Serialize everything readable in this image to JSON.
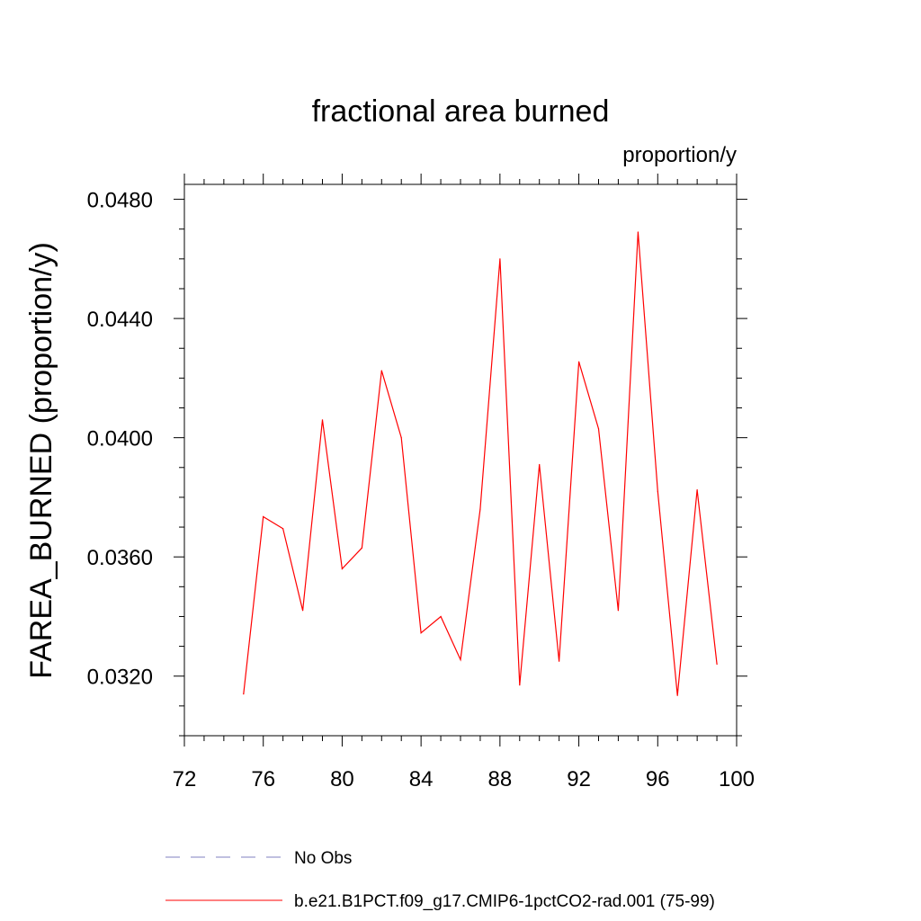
{
  "chart_data": {
    "type": "line",
    "title": "fractional area burned",
    "units": "proportion/y",
    "ylabel": "FAREA_BURNED  (proportion/y)",
    "xlabel": "",
    "xlim": [
      72,
      100
    ],
    "ylim": [
      0.03,
      0.0485
    ],
    "x_ticks": [
      72,
      76,
      80,
      84,
      88,
      92,
      96,
      100
    ],
    "x_tick_labels": [
      "72",
      "76",
      "80",
      "84",
      "88",
      "92",
      "96",
      "100"
    ],
    "y_ticks": [
      0.032,
      0.036,
      0.04,
      0.044,
      0.048
    ],
    "y_tick_labels": [
      "0.0320",
      "0.0360",
      "0.0400",
      "0.0440",
      "0.0480"
    ],
    "grid": false,
    "legend_position": "bottom",
    "series": [
      {
        "name": "No Obs",
        "color": "#8080c0",
        "dash": "dashed",
        "x": [],
        "values": []
      },
      {
        "name": "b.e21.B1PCT.f09_g17.CMIP6-1pctCO2-rad.001 (75-99)",
        "color": "#ff0000",
        "dash": "solid",
        "x": [
          75,
          76,
          77,
          78,
          79,
          80,
          81,
          82,
          83,
          84,
          85,
          86,
          87,
          88,
          89,
          90,
          91,
          92,
          93,
          94,
          95,
          96,
          97,
          98,
          99
        ],
        "values": [
          0.0314,
          0.03735,
          0.03695,
          0.0342,
          0.0406,
          0.0356,
          0.0363,
          0.04225,
          0.04,
          0.03345,
          0.034,
          0.03255,
          0.0376,
          0.046,
          0.0317,
          0.0391,
          0.0325,
          0.04255,
          0.0403,
          0.0342,
          0.0469,
          0.0382,
          0.03135,
          0.03825,
          0.0324
        ]
      }
    ]
  }
}
